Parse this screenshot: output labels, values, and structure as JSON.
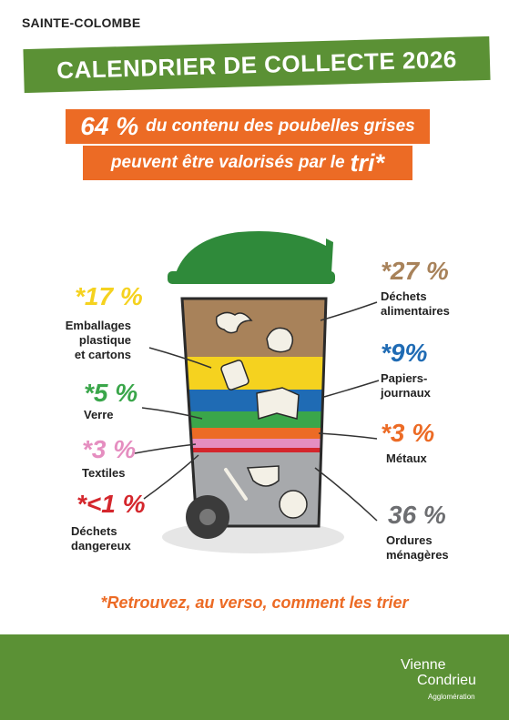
{
  "header": {
    "town": "SAINTE-COLOMBE",
    "title": "CALENDRIER DE COLLECTE 2026"
  },
  "headline": {
    "percent": "64 %",
    "line1_text": "du contenu des poubelles grises",
    "line2_text": "peuvent être valorisés par le",
    "highlight": "tri*"
  },
  "categories": [
    {
      "key": "emballages",
      "percent": "*17 %",
      "label": [
        "Emballages",
        "plastique",
        "et cartons"
      ],
      "color": "#f5d21f"
    },
    {
      "key": "verre",
      "percent": "*5 %",
      "label": [
        "Verre"
      ],
      "color": "#3aa64a"
    },
    {
      "key": "textiles",
      "percent": "*3 %",
      "label": [
        "Textiles"
      ],
      "color": "#e58ec0"
    },
    {
      "key": "dangereux",
      "percent": "*<1 %",
      "label": [
        "Déchets",
        "dangereux"
      ],
      "color": "#d4262c"
    },
    {
      "key": "alimentaires",
      "percent": "*27 %",
      "label": [
        "Déchets",
        "alimentaires"
      ],
      "color": "#a8825a"
    },
    {
      "key": "papiers",
      "percent": "*9%",
      "label": [
        "Papiers-",
        "journaux"
      ],
      "color": "#1f6bb4"
    },
    {
      "key": "metaux",
      "percent": "*3 %",
      "label": [
        "Métaux"
      ],
      "color": "#ec6b25"
    },
    {
      "key": "ordures",
      "percent": "36 %",
      "label": [
        "Ordures",
        "ménagères"
      ],
      "color": "#6d6e71"
    }
  ],
  "footer": {
    "note": "*Retrouvez, au verso, comment les trier",
    "logo_line1": "Vienne",
    "logo_line2": "Condrieu",
    "logo_sub": "Agglomération"
  }
}
